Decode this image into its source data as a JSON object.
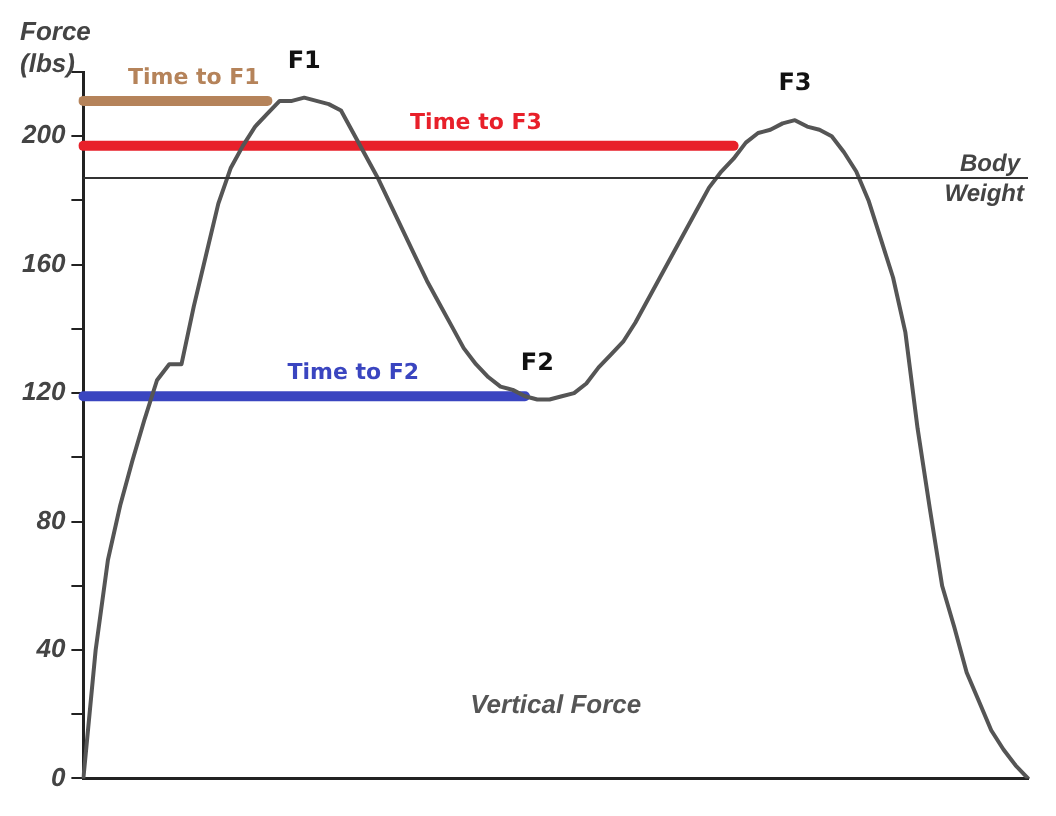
{
  "chart_data": {
    "type": "line",
    "ylabel": "Force (lbs)",
    "categories": [
      null,
      null,
      null,
      null,
      null,
      null,
      null,
      null,
      null,
      null,
      null,
      null,
      null,
      null,
      null,
      null,
      null,
      null,
      null,
      null,
      null,
      null,
      null,
      null,
      null,
      null,
      null,
      null,
      null,
      null,
      null,
      null,
      null,
      null,
      null,
      null,
      null,
      null,
      null,
      null,
      null,
      null,
      null,
      null,
      null,
      null,
      null,
      null,
      null,
      null,
      null,
      null,
      null,
      null,
      null,
      null,
      null,
      null,
      null,
      null,
      null,
      null,
      null,
      null,
      null,
      null,
      null,
      null,
      null,
      null,
      null,
      null,
      null,
      null,
      null,
      null,
      null,
      null
    ],
    "series": [
      {
        "name": "Vertical Force",
        "color": "#555555",
        "values": [
          0,
          40,
          68,
          85,
          99,
          112,
          124,
          129,
          129,
          147,
          163,
          179,
          190,
          197,
          203,
          207,
          211,
          211,
          212,
          211,
          210,
          208,
          201,
          194,
          187,
          179,
          171,
          163,
          155,
          148,
          141,
          134,
          129,
          125,
          122,
          121,
          119,
          118,
          118,
          119,
          120,
          123,
          128,
          132,
          136,
          142,
          149,
          156,
          163,
          170,
          177,
          184,
          189,
          193,
          198,
          201,
          202,
          204,
          205,
          203,
          202,
          200,
          195,
          189,
          180,
          168,
          156,
          139,
          109,
          84,
          60,
          47,
          33,
          24,
          15,
          9,
          4,
          0
        ]
      },
      {
        "name": "Time to F1",
        "color": "#b5835a",
        "values": [
          211,
          211,
          211,
          211,
          211,
          211,
          211,
          211,
          211,
          211,
          211,
          211,
          211,
          211,
          211,
          211,
          null,
          null,
          null,
          null,
          null,
          null,
          null,
          null,
          null,
          null,
          null,
          null,
          null,
          null,
          null,
          null,
          null,
          null,
          null,
          null,
          null,
          null,
          null,
          null,
          null,
          null,
          null,
          null,
          null,
          null,
          null,
          null,
          null,
          null,
          null,
          null,
          null,
          null,
          null,
          null,
          null,
          null,
          null,
          null,
          null,
          null,
          null,
          null,
          null,
          null,
          null,
          null,
          null,
          null,
          null,
          null,
          null,
          null,
          null,
          null,
          null,
          null
        ]
      },
      {
        "name": "Time to F3",
        "color": "#e8202a",
        "values": [
          197,
          197,
          197,
          197,
          197,
          197,
          197,
          197,
          197,
          197,
          197,
          197,
          197,
          197,
          197,
          197,
          197,
          197,
          197,
          197,
          197,
          197,
          197,
          197,
          197,
          197,
          197,
          197,
          197,
          197,
          197,
          197,
          197,
          197,
          197,
          197,
          197,
          197,
          197,
          197,
          197,
          197,
          197,
          197,
          197,
          197,
          197,
          197,
          197,
          197,
          197,
          197,
          197,
          197,
          null,
          null,
          null,
          null,
          null,
          null,
          null,
          null,
          null,
          null,
          null,
          null,
          null,
          null,
          null,
          null,
          null,
          null,
          null,
          null,
          null,
          null,
          null,
          null
        ]
      },
      {
        "name": "Time to F2",
        "color": "#3a45c0",
        "values": [
          119,
          119,
          119,
          119,
          119,
          119,
          119,
          119,
          119,
          119,
          119,
          119,
          119,
          119,
          119,
          119,
          119,
          119,
          119,
          119,
          119,
          119,
          119,
          119,
          119,
          119,
          119,
          119,
          119,
          119,
          119,
          119,
          119,
          119,
          119,
          119,
          119,
          null,
          null,
          null,
          null,
          null,
          null,
          null,
          null,
          null,
          null,
          null,
          null,
          null,
          null,
          null,
          null,
          null,
          null,
          null,
          null,
          null,
          null,
          null,
          null,
          null,
          null,
          null,
          null,
          null,
          null,
          null,
          null,
          null,
          null,
          null,
          null,
          null,
          null,
          null,
          null,
          null
        ]
      }
    ],
    "ylim": [
      0,
      220
    ],
    "yticks": [
      0,
      {
        "value": 20,
        "label": null
      },
      40,
      {
        "value": 60,
        "label": null
      },
      80,
      {
        "value": 100,
        "label": null
      },
      120,
      {
        "value": 140,
        "label": null
      },
      160,
      {
        "value": 180,
        "label": null
      },
      200,
      {
        "value": 220,
        "label": null
      }
    ],
    "ref_lines": [
      {
        "axis": "y",
        "value": 187,
        "label": "Body Weight",
        "color": "#333333"
      }
    ],
    "annotations": [
      {
        "text": "F1",
        "y": 212
      },
      {
        "text": "F2",
        "y": 118
      },
      {
        "text": "F3",
        "y": 205
      }
    ],
    "grid": false,
    "legend": false,
    "marker": "none",
    "tick_labels": "y"
  }
}
